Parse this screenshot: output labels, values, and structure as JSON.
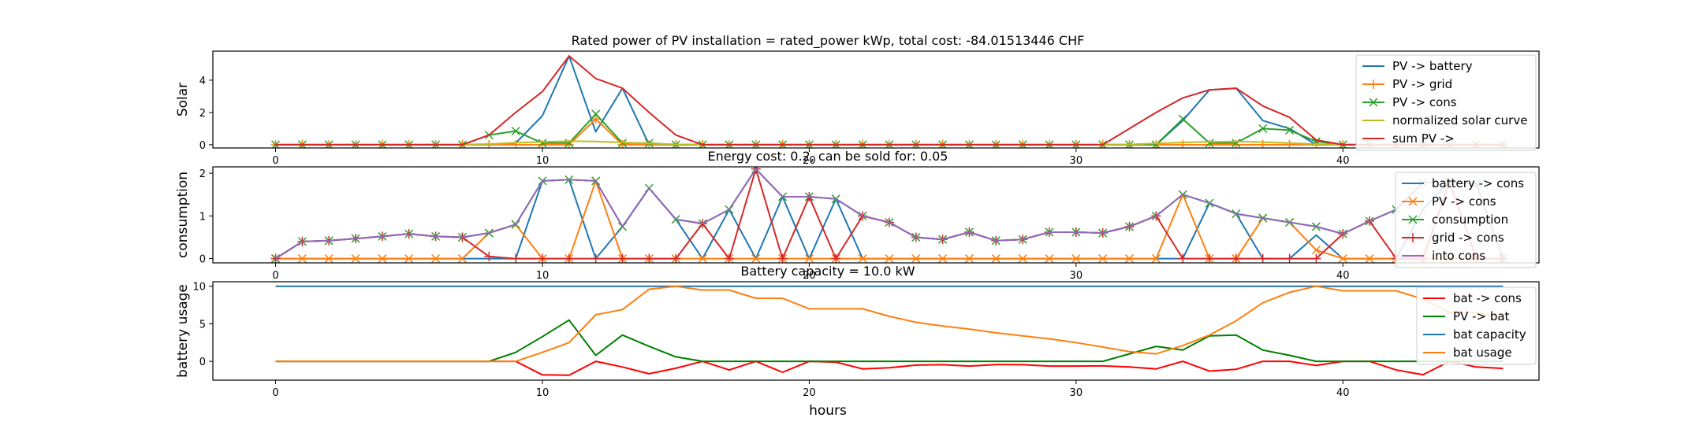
{
  "figure": {
    "title": "Rated power of PV installation = rated_power kWp, total cost: -84.01513446 CHF",
    "xlabel": "hours"
  },
  "chart_data": [
    {
      "type": "line",
      "title": "Rated power of PV installation = rated_power kWp, total cost: -84.01513446 CHF",
      "ylabel": "Solar",
      "xlim": [
        -2.35,
        47.35
      ],
      "ylim": [
        -0.2,
        5.8
      ],
      "xticks": [
        0,
        10,
        20,
        30,
        40
      ],
      "yticks": [
        0,
        2,
        4
      ],
      "legend_position": "top-right",
      "x": [
        0,
        1,
        2,
        3,
        4,
        5,
        6,
        7,
        8,
        9,
        10,
        11,
        12,
        13,
        14,
        15,
        16,
        17,
        18,
        19,
        20,
        21,
        22,
        23,
        24,
        25,
        26,
        27,
        28,
        29,
        30,
        31,
        32,
        33,
        34,
        35,
        36,
        37,
        38,
        39,
        40,
        41,
        42,
        43,
        44,
        45,
        46
      ],
      "series": [
        {
          "name": "PV -> battery",
          "color": "#1f77b4",
          "marker": "none",
          "values": [
            0,
            0,
            0,
            0,
            0,
            0,
            0,
            0,
            0,
            0.1,
            1.8,
            5.5,
            0.8,
            3.5,
            0,
            0,
            0,
            0,
            0,
            0,
            0,
            0,
            0,
            0,
            0,
            0,
            0,
            0,
            0,
            0,
            0,
            0,
            0,
            0,
            1.5,
            3.4,
            3.5,
            1.5,
            1.0,
            0,
            0,
            0,
            0,
            0,
            0,
            0,
            0
          ]
        },
        {
          "name": "PV -> grid",
          "color": "#ff7f0e",
          "marker": "plus",
          "values": [
            0,
            0,
            0,
            0,
            0,
            0,
            0,
            0,
            0,
            0,
            0,
            0,
            1.6,
            0,
            0,
            0,
            0,
            0,
            0,
            0,
            0,
            0,
            0,
            0,
            0,
            0,
            0,
            0,
            0,
            0,
            0,
            0,
            0,
            0,
            0,
            0,
            0,
            0,
            0,
            0,
            0,
            0,
            0,
            0,
            0,
            0,
            0
          ]
        },
        {
          "name": "PV -> cons",
          "color": "#2ca02c",
          "marker": "x",
          "values": [
            0,
            0,
            0,
            0,
            0,
            0,
            0,
            0,
            0.6,
            0.85,
            0.1,
            0.1,
            1.9,
            0.1,
            0.1,
            0,
            0,
            0,
            0,
            0,
            0,
            0,
            0,
            0,
            0,
            0,
            0,
            0,
            0,
            0,
            0,
            0,
            0,
            0,
            1.6,
            0.1,
            0.1,
            1.0,
            0.9,
            0.2,
            0,
            0,
            0,
            0,
            0,
            0,
            0
          ]
        },
        {
          "name": "normalized solar curve",
          "color": "#bcbd22",
          "marker": "none",
          "values": [
            0,
            0,
            0,
            0,
            0,
            0,
            0,
            0,
            0.05,
            0.12,
            0.18,
            0.22,
            0.2,
            0.14,
            0.08,
            0.02,
            0,
            0,
            0,
            0,
            0,
            0,
            0,
            0,
            0,
            0,
            0,
            0,
            0,
            0,
            0,
            0,
            0.02,
            0.08,
            0.14,
            0.18,
            0.2,
            0.16,
            0.1,
            0.04,
            0,
            0,
            0,
            0,
            0,
            0,
            0
          ]
        },
        {
          "name": "sum PV ->",
          "color": "#d62728",
          "marker": "none",
          "values": [
            0,
            0,
            0,
            0,
            0,
            0,
            0,
            0,
            0.6,
            2.0,
            3.3,
            5.5,
            4.1,
            3.5,
            2.0,
            0.6,
            0,
            0,
            0,
            0,
            0,
            0,
            0,
            0,
            0,
            0,
            0,
            0,
            0,
            0,
            0,
            0,
            1.0,
            2.0,
            2.9,
            3.4,
            3.5,
            2.4,
            1.7,
            0.3,
            0,
            0,
            0,
            0,
            0,
            0,
            0
          ]
        }
      ]
    },
    {
      "type": "line",
      "title": "Energy cost: 0.2, can be sold for: 0.05",
      "ylabel": "consumption",
      "xlim": [
        -2.35,
        47.35
      ],
      "ylim": [
        -0.1,
        2.15
      ],
      "xticks": [
        0,
        10,
        20,
        30,
        40
      ],
      "yticks": [
        0,
        1,
        2
      ],
      "legend_position": "top-right",
      "x": [
        0,
        1,
        2,
        3,
        4,
        5,
        6,
        7,
        8,
        9,
        10,
        11,
        12,
        13,
        14,
        15,
        16,
        17,
        18,
        19,
        20,
        21,
        22,
        23,
        24,
        25,
        26,
        27,
        28,
        29,
        30,
        31,
        32,
        33,
        34,
        35,
        36,
        37,
        38,
        39,
        40,
        41,
        42,
        43,
        44,
        45,
        46
      ],
      "series": [
        {
          "name": "battery -> cons",
          "color": "#1f77b4",
          "marker": "none",
          "values": [
            0,
            0,
            0,
            0,
            0,
            0,
            0,
            0,
            0,
            0,
            1.82,
            1.85,
            0,
            0.75,
            1.65,
            0.92,
            0,
            1.15,
            0,
            1.45,
            0,
            1.4,
            0,
            0,
            0,
            0,
            0,
            0,
            0,
            0,
            0,
            0,
            0,
            0,
            0,
            1.3,
            1.05,
            0,
            0,
            0.55,
            0,
            0,
            0,
            1.15,
            1.8,
            1.75,
            0
          ]
        },
        {
          "name": "PV -> cons",
          "color": "#ff7f0e",
          "marker": "x",
          "values": [
            0,
            0,
            0,
            0,
            0,
            0,
            0,
            0,
            0.6,
            0.8,
            0,
            0,
            1.82,
            0,
            0,
            0,
            0,
            0,
            0,
            0,
            0,
            0,
            0,
            0,
            0,
            0,
            0,
            0,
            0,
            0,
            0,
            0,
            0,
            0,
            1.5,
            0,
            0,
            0.95,
            0.85,
            0.2,
            0,
            0,
            0,
            0,
            0,
            0,
            0
          ]
        },
        {
          "name": "consumption",
          "color": "#2ca02c",
          "marker": "x",
          "values": [
            0,
            0.4,
            0.42,
            0.47,
            0.52,
            0.58,
            0.52,
            0.5,
            0.6,
            0.8,
            1.82,
            1.85,
            1.82,
            0.75,
            1.65,
            0.92,
            0.82,
            1.15,
            2.1,
            1.45,
            1.45,
            1.4,
            1.0,
            0.85,
            0.5,
            0.45,
            0.62,
            0.42,
            0.45,
            0.62,
            0.62,
            0.6,
            0.75,
            1.0,
            1.5,
            1.3,
            1.05,
            0.95,
            0.85,
            0.75,
            0.58,
            0.88,
            1.15,
            1.78,
            1.8,
            1.75,
            0
          ]
        },
        {
          "name": "grid -> cons",
          "color": "#d62728",
          "marker": "plus",
          "values": [
            0,
            0.4,
            0.42,
            0.47,
            0.52,
            0.58,
            0.52,
            0.5,
            0.05,
            0,
            0,
            0,
            0,
            0,
            0,
            0,
            0.82,
            0,
            2.1,
            0,
            1.45,
            0,
            1.0,
            0.85,
            0.5,
            0.45,
            0.62,
            0.42,
            0.45,
            0.62,
            0.62,
            0.6,
            0.75,
            1.0,
            0,
            0,
            0,
            0,
            0,
            0,
            0.58,
            0.88,
            0,
            0,
            1.8,
            0,
            0
          ]
        },
        {
          "name": "into cons",
          "color": "#9467bd",
          "marker": "none",
          "values": [
            0,
            0.4,
            0.42,
            0.47,
            0.52,
            0.58,
            0.52,
            0.5,
            0.6,
            0.8,
            1.82,
            1.85,
            1.82,
            0.75,
            1.65,
            0.92,
            0.82,
            1.15,
            2.1,
            1.45,
            1.45,
            1.4,
            1.0,
            0.85,
            0.5,
            0.45,
            0.62,
            0.42,
            0.45,
            0.62,
            0.62,
            0.6,
            0.75,
            1.0,
            1.5,
            1.3,
            1.05,
            0.95,
            0.85,
            0.75,
            0.58,
            0.88,
            1.15,
            1.78,
            1.8,
            1.75,
            0
          ]
        }
      ]
    },
    {
      "type": "line",
      "title": "Battery capacity = 10.0 kW",
      "ylabel": "battery usage",
      "xlabel": "hours",
      "xlim": [
        -2.35,
        47.35
      ],
      "ylim": [
        -2.5,
        10.6
      ],
      "xticks": [
        0,
        10,
        20,
        30,
        40
      ],
      "yticks": [
        0,
        5,
        10
      ],
      "legend_position": "top-right",
      "x": [
        0,
        1,
        2,
        3,
        4,
        5,
        6,
        7,
        8,
        9,
        10,
        11,
        12,
        13,
        14,
        15,
        16,
        17,
        18,
        19,
        20,
        21,
        22,
        23,
        24,
        25,
        26,
        27,
        28,
        29,
        30,
        31,
        32,
        33,
        34,
        35,
        36,
        37,
        38,
        39,
        40,
        41,
        42,
        43,
        44,
        45,
        46
      ],
      "series": [
        {
          "name": "bat -> cons",
          "color": "#ff0000",
          "marker": "none",
          "values": [
            0,
            0,
            0,
            0,
            0,
            0,
            0,
            0,
            0,
            0,
            -1.8,
            -1.85,
            0,
            -0.75,
            -1.65,
            -0.92,
            0,
            -1.15,
            0,
            -1.45,
            0,
            -0.1,
            -1.0,
            -0.85,
            -0.5,
            -0.45,
            -0.62,
            -0.42,
            -0.45,
            -0.62,
            -0.62,
            -0.6,
            -0.75,
            -1.0,
            0,
            -1.3,
            -1.05,
            0,
            0,
            -0.55,
            0,
            0,
            -1.15,
            -1.78,
            0,
            -0.75,
            -0.95
          ]
        },
        {
          "name": "PV -> bat",
          "color": "#008000",
          "marker": "none",
          "values": [
            0,
            0,
            0,
            0,
            0,
            0,
            0,
            0,
            0,
            1.2,
            3.3,
            5.5,
            0.8,
            3.5,
            2.0,
            0.6,
            0,
            0,
            0,
            0,
            0,
            0,
            0,
            0,
            0,
            0,
            0,
            0,
            0,
            0,
            0,
            0,
            1.0,
            2.0,
            1.5,
            3.4,
            3.5,
            1.5,
            0.8,
            0,
            0,
            0,
            0,
            0,
            0,
            0,
            0
          ]
        },
        {
          "name": "bat capacity",
          "color": "#1f77b4",
          "marker": "none",
          "values": [
            10,
            10,
            10,
            10,
            10,
            10,
            10,
            10,
            10,
            10,
            10,
            10,
            10,
            10,
            10,
            10,
            10,
            10,
            10,
            10,
            10,
            10,
            10,
            10,
            10,
            10,
            10,
            10,
            10,
            10,
            10,
            10,
            10,
            10,
            10,
            10,
            10,
            10,
            10,
            10,
            10,
            10,
            10,
            10,
            10,
            10,
            10
          ]
        },
        {
          "name": "bat usage",
          "color": "#ff7f0e",
          "marker": "none",
          "values": [
            0,
            0,
            0,
            0,
            0,
            0,
            0,
            0,
            0,
            0,
            1.2,
            2.5,
            6.2,
            6.9,
            9.6,
            10.0,
            9.5,
            9.5,
            8.4,
            8.4,
            7.0,
            7.0,
            7.0,
            6.0,
            5.2,
            4.7,
            4.3,
            3.8,
            3.4,
            3.0,
            2.5,
            1.9,
            1.3,
            1.0,
            2.1,
            3.5,
            5.4,
            7.8,
            9.2,
            10.0,
            9.4,
            9.4,
            9.4,
            8.3,
            6.5,
            6.5,
            5.8
          ]
        }
      ]
    }
  ]
}
